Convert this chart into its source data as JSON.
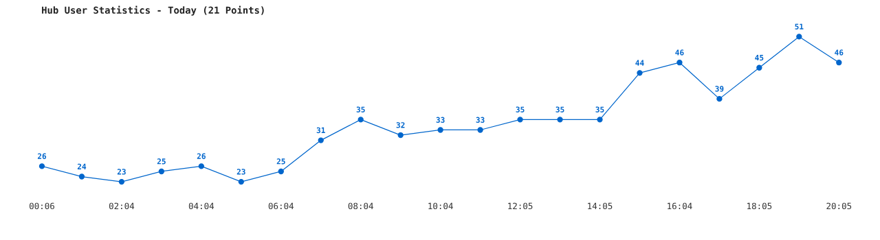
{
  "chart_data": {
    "type": "line",
    "title": "Hub User Statistics - Today (21 Points)",
    "categories": [
      "00:06",
      null,
      "02:04",
      null,
      "04:04",
      null,
      "06:04",
      null,
      "08:04",
      null,
      "10:04",
      null,
      "12:05",
      null,
      "14:05",
      null,
      "16:04",
      null,
      "18:05",
      null,
      "20:05"
    ],
    "values": [
      26,
      24,
      23,
      25,
      26,
      23,
      25,
      31,
      35,
      32,
      33,
      33,
      35,
      35,
      35,
      44,
      46,
      39,
      45,
      51,
      46
    ],
    "color": "#0066cc",
    "marker": "circle",
    "line_style": "solid",
    "data_labels": true,
    "grid": false,
    "legend": false,
    "tick_labels": "x"
  }
}
